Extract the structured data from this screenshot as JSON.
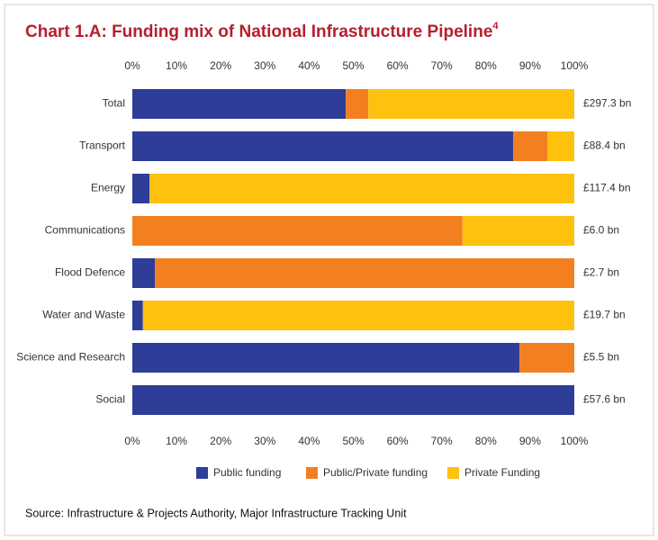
{
  "chart_data": {
    "type": "stacked-bar-horizontal",
    "title": "Chart 1.A: Funding mix of National Infrastructure Pipeline",
    "title_note": "4",
    "categories": [
      "Total",
      "Transport",
      "Energy",
      "Communications",
      "Flood Defence",
      "Water and Waste",
      "Science and Research",
      "Social"
    ],
    "row_totals": [
      "£297.3 bn",
      "£88.4 bn",
      "£117.4 bn",
      "£6.0 bn",
      "£2.7 bn",
      "£19.7 bn",
      "£5.5 bn",
      "£57.6 bn"
    ],
    "series": [
      {
        "name": "Public funding",
        "color": "#2e3d98",
        "values": [
          48.3,
          86.2,
          3.9,
          0,
          5.1,
          2.4,
          87.6,
          100
        ]
      },
      {
        "name": "Public/Private funding",
        "color": "#f47f20",
        "values": [
          5.1,
          7.7,
          0,
          74.7,
          94.9,
          0,
          12.4,
          0
        ]
      },
      {
        "name": "Private Funding",
        "color": "#fdc10e",
        "values": [
          46.6,
          6.1,
          96.1,
          25.3,
          0,
          97.6,
          0,
          0
        ]
      }
    ],
    "xlim": [
      0,
      100
    ],
    "xticks": [
      {
        "value": 0,
        "label": "0%"
      },
      {
        "value": 10,
        "label": "10%"
      },
      {
        "value": 20,
        "label": "20%"
      },
      {
        "value": 30,
        "label": "30%"
      },
      {
        "value": 40,
        "label": "40%"
      },
      {
        "value": 50,
        "label": "50%"
      },
      {
        "value": 60,
        "label": "60%"
      },
      {
        "value": 70,
        "label": "70%"
      },
      {
        "value": 80,
        "label": "80%"
      },
      {
        "value": 90,
        "label": "90%"
      },
      {
        "value": 100,
        "label": "100%"
      }
    ],
    "source": "Source: Infrastructure & Projects Authority, Major Infrastructure Tracking Unit"
  }
}
